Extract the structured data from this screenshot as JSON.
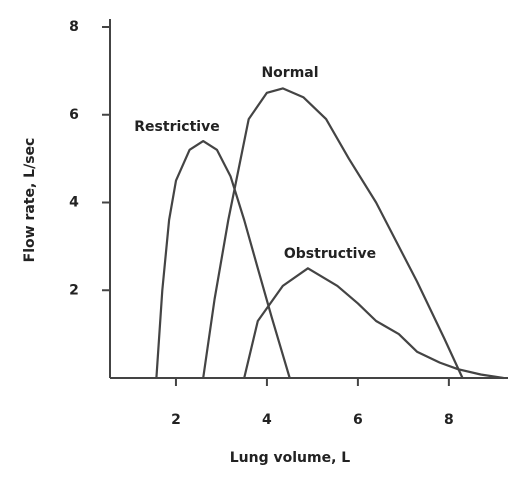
{
  "chart_data": {
    "type": "line",
    "xlabel": "Lung volume, L",
    "ylabel": "Flow rate, L/sec",
    "xlim": [
      0.55,
      9.3
    ],
    "ylim": [
      0,
      8
    ],
    "xticks": [
      2,
      4,
      6,
      8
    ],
    "yticks": [
      2,
      4,
      6,
      8
    ],
    "series": [
      {
        "name": "Restrictive",
        "color": "#444444",
        "x": [
          1.57,
          1.7,
          1.85,
          2.0,
          2.3,
          2.6,
          2.9,
          3.2,
          3.5,
          3.8,
          4.1,
          4.3,
          4.5
        ],
        "values": [
          0,
          2,
          3.6,
          4.5,
          5.2,
          5.4,
          5.2,
          4.6,
          3.6,
          2.5,
          1.4,
          0.7,
          0
        ]
      },
      {
        "name": "Normal",
        "color": "#444444",
        "x": [
          2.6,
          2.85,
          3.15,
          3.6,
          4.0,
          4.35,
          4.8,
          5.3,
          5.8,
          6.4,
          6.9,
          7.3,
          7.9,
          8.3
        ],
        "values": [
          0,
          1.8,
          3.6,
          5.9,
          6.5,
          6.6,
          6.4,
          5.9,
          5.0,
          4.0,
          3.0,
          2.2,
          0.9,
          0
        ]
      },
      {
        "name": "Obstructive",
        "color": "#444444",
        "x": [
          3.5,
          3.8,
          4.35,
          4.9,
          5.55,
          6.0,
          6.4,
          6.9,
          7.3,
          7.8,
          8.2,
          8.7,
          9.2
        ],
        "values": [
          0,
          1.3,
          2.1,
          2.5,
          2.1,
          1.7,
          1.3,
          1.0,
          0.6,
          0.35,
          0.2,
          0.08,
          0
        ]
      }
    ]
  }
}
